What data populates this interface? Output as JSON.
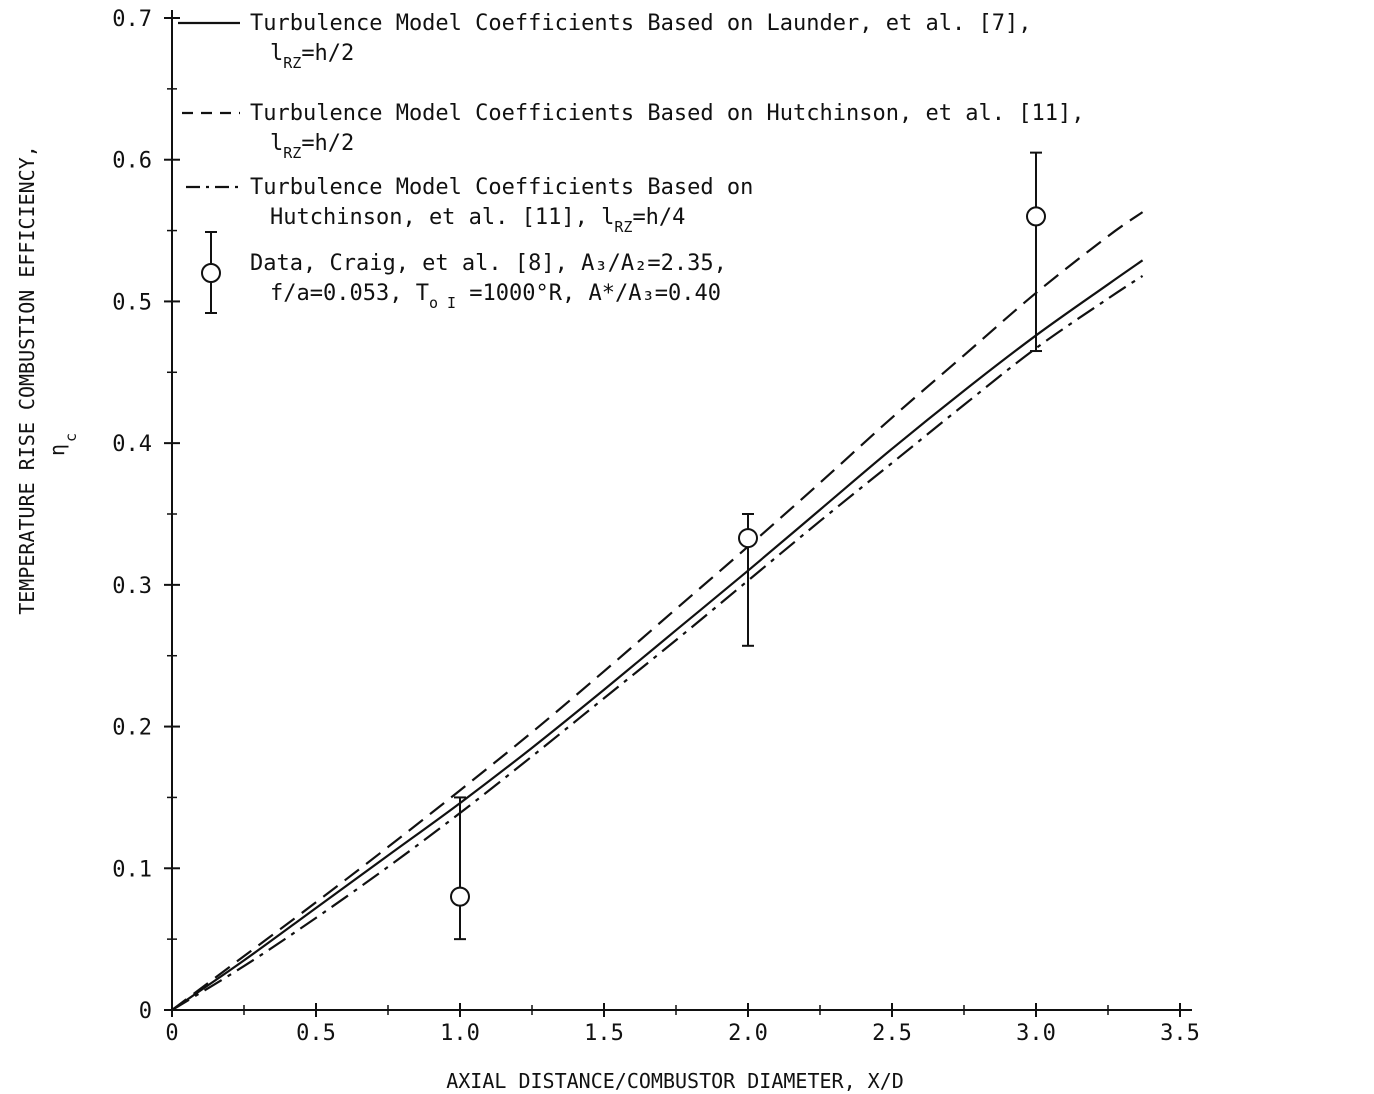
{
  "chart_data": {
    "type": "line",
    "xlabel": "AXIAL DISTANCE/COMBUSTOR DIAMETER, X/D",
    "ylabel": "TEMPERATURE RISE COMBUSTION EFFICIENCY,",
    "ylabel_symbol": "η",
    "ylabel_symbol_sub": "c",
    "xlim": [
      0,
      3.5
    ],
    "ylim": [
      0,
      0.7
    ],
    "x_tick_labels": [
      "0",
      "0.5",
      "1.0",
      "1.5",
      "2.0",
      "2.5",
      "3.0",
      "3.5"
    ],
    "y_tick_labels": [
      "0",
      "0.1",
      "0.2",
      "0.3",
      "0.4",
      "0.5",
      "0.6",
      "0.7"
    ],
    "x_ticks": [
      0,
      0.5,
      1.0,
      1.5,
      2.0,
      2.5,
      3.0,
      3.5
    ],
    "y_ticks": [
      0,
      0.1,
      0.2,
      0.3,
      0.4,
      0.5,
      0.6,
      0.7
    ],
    "legend_placement": "top-left",
    "legend": [
      {
        "style": "solid",
        "line1": "Turbulence Model Coefficients Based on Launder, et al. [7],",
        "line2_main": "l",
        "line2_sub": "RZ",
        "line2_rest": "=h/2"
      },
      {
        "style": "dashed",
        "line1": "Turbulence Model Coefficients Based on Hutchinson, et al. [11],",
        "line2_main": "l",
        "line2_sub": "RZ",
        "line2_rest": "=h/2"
      },
      {
        "style": "dashdot",
        "line1": "Turbulence Model Coefficients Based on",
        "line2_main": "Hutchinson, et al. [11], l",
        "line2_sub": "RZ",
        "line2_rest": "=h/4"
      },
      {
        "style": "errorbar",
        "line1": "Data, Craig, et al. [8], A₃/A₂=2.35,",
        "line2_main": "f/a=0.053, T",
        "line2_sub": "o I",
        "line2_rest": " =1000°R, A*/A₃=0.40"
      }
    ],
    "series": [
      {
        "style": "solid",
        "x": [
          0,
          0.25,
          0.5,
          0.75,
          1.0,
          1.25,
          1.5,
          1.75,
          2.0,
          2.25,
          2.5,
          2.75,
          3.0,
          3.25,
          3.37
        ],
        "y": [
          0,
          0.035,
          0.072,
          0.109,
          0.146,
          0.185,
          0.226,
          0.268,
          0.31,
          0.353,
          0.396,
          0.437,
          0.476,
          0.512,
          0.529
        ]
      },
      {
        "style": "dashed",
        "x": [
          0,
          0.25,
          0.5,
          0.75,
          1.0,
          1.25,
          1.5,
          1.75,
          2.0,
          2.25,
          2.5,
          2.75,
          3.0,
          3.25,
          3.37
        ],
        "y": [
          0,
          0.038,
          0.076,
          0.115,
          0.155,
          0.196,
          0.239,
          0.283,
          0.327,
          0.372,
          0.418,
          0.462,
          0.506,
          0.546,
          0.563
        ]
      },
      {
        "style": "dashdot",
        "x": [
          0,
          0.25,
          0.5,
          0.75,
          1.0,
          1.25,
          1.5,
          1.75,
          2.0,
          2.25,
          2.5,
          2.75,
          3.0,
          3.25,
          3.37
        ],
        "y": [
          0,
          0.031,
          0.065,
          0.101,
          0.139,
          0.179,
          0.22,
          0.261,
          0.303,
          0.345,
          0.386,
          0.427,
          0.467,
          0.502,
          0.518
        ]
      }
    ],
    "data_points": [
      {
        "x": 1.0,
        "y": 0.08,
        "y_low": 0.05,
        "y_high": 0.15
      },
      {
        "x": 2.0,
        "y": 0.333,
        "y_low": 0.257,
        "y_high": 0.35
      },
      {
        "x": 3.0,
        "y": 0.56,
        "y_low": 0.465,
        "y_high": 0.605
      }
    ]
  }
}
